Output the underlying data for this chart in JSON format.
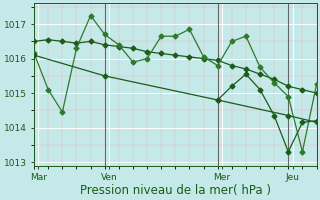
{
  "background_color": "#c5e8e8",
  "grid_color_major": "#ffffff",
  "grid_color_minor": "#e8b0b0",
  "line_color_dark": "#1a5c1a",
  "line_color_mid": "#2d7a2d",
  "xlabel": "Pression niveau de la mer( hPa )",
  "ylim": [
    1012.9,
    1017.6
  ],
  "yticks": [
    1013,
    1014,
    1015,
    1016,
    1017
  ],
  "xlim": [
    0,
    20
  ],
  "vline_positions": [
    0,
    5,
    13,
    18
  ],
  "x_tick_positions": [
    0.3,
    5.3,
    13.3,
    18.3
  ],
  "x_tick_labels": [
    "Mar",
    "Ven",
    "Mer",
    "Jeu"
  ],
  "series_zigzag_x": [
    0,
    1,
    2,
    3,
    4,
    5,
    6,
    7,
    8,
    9,
    10,
    11,
    12,
    13,
    14,
    15,
    16,
    17,
    18,
    19,
    20
  ],
  "series_zigzag_y": [
    1016.15,
    1015.1,
    1014.45,
    1016.3,
    1017.25,
    1016.7,
    1016.4,
    1015.9,
    1016.0,
    1016.65,
    1016.65,
    1016.85,
    1016.05,
    1015.8,
    1016.5,
    1016.65,
    1015.75,
    1015.3,
    1014.9,
    1013.3,
    1015.25
  ],
  "series_upper_x": [
    0,
    1,
    2,
    3,
    4,
    5,
    6,
    7,
    8,
    9,
    10,
    11,
    12,
    13,
    14,
    15,
    16,
    17,
    18,
    19,
    20
  ],
  "series_upper_y": [
    1016.5,
    1016.55,
    1016.5,
    1016.45,
    1016.5,
    1016.4,
    1016.35,
    1016.3,
    1016.2,
    1016.15,
    1016.1,
    1016.05,
    1016.0,
    1015.95,
    1015.8,
    1015.7,
    1015.55,
    1015.4,
    1015.2,
    1015.1,
    1015.0
  ],
  "series_lower_x": [
    0,
    5,
    13,
    18,
    20
  ],
  "series_lower_y": [
    1016.1,
    1015.5,
    1014.8,
    1014.35,
    1014.15
  ],
  "series_right_x": [
    13,
    14,
    15,
    16,
    17,
    18,
    19,
    20
  ],
  "series_right_y": [
    1014.8,
    1015.2,
    1015.55,
    1015.1,
    1014.35,
    1013.3,
    1014.15,
    1014.2
  ],
  "font_color": "#1a5c1a",
  "tick_fontsize": 6.5,
  "xlabel_fontsize": 8.5,
  "linewidth": 0.9,
  "markersize": 2.5,
  "marker": "D"
}
